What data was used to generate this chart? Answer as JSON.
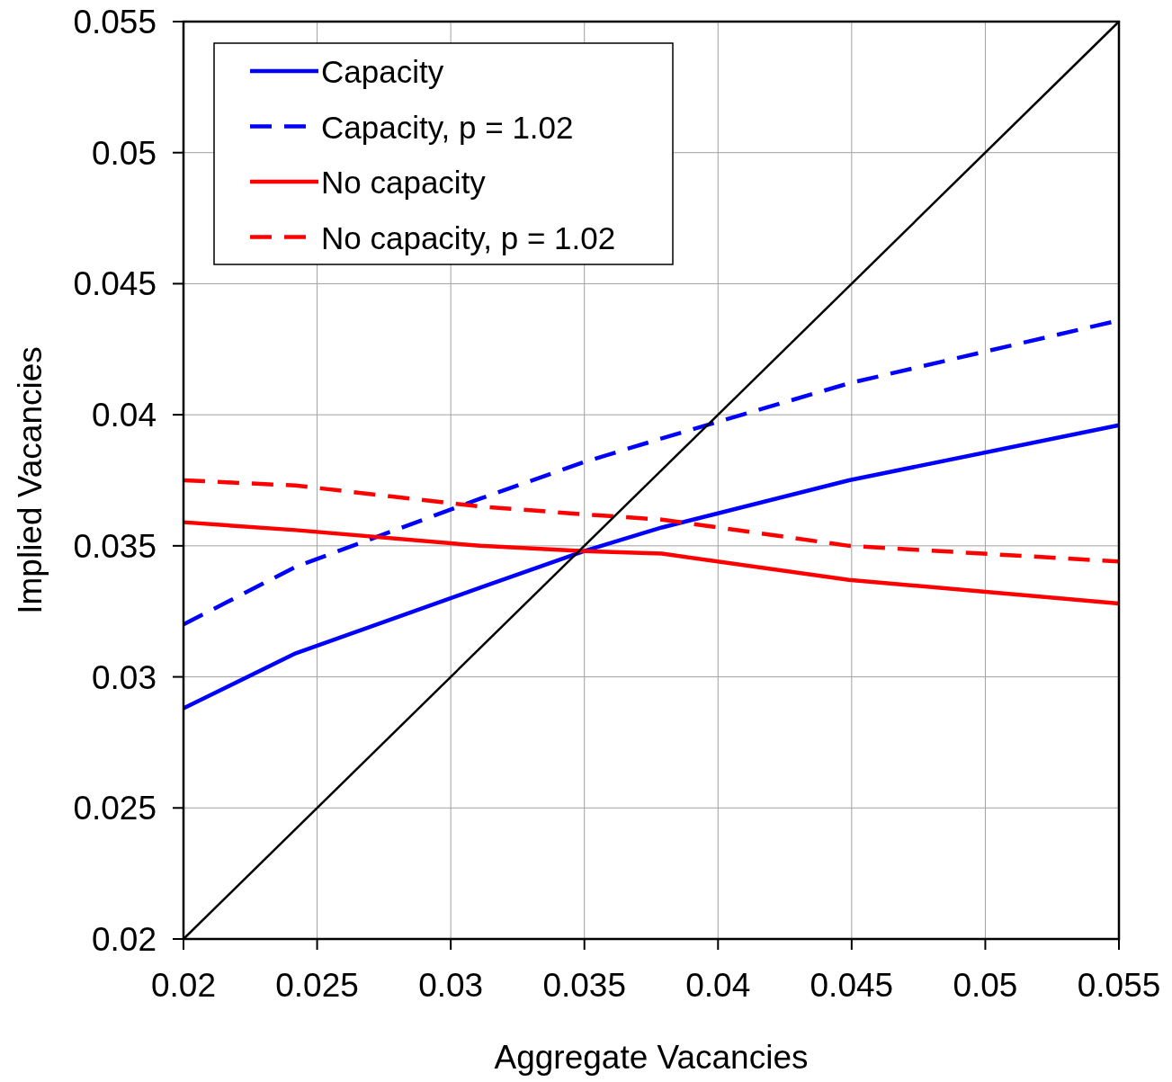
{
  "chart_data": {
    "type": "line",
    "xlabel": "Aggregate Vacancies",
    "ylabel": "Implied Vacancies",
    "xlim": [
      0.02,
      0.055
    ],
    "ylim": [
      0.02,
      0.055
    ],
    "xticks": [
      0.02,
      0.025,
      0.03,
      0.035,
      0.04,
      0.045,
      0.05,
      0.055
    ],
    "yticks": [
      0.02,
      0.025,
      0.03,
      0.035,
      0.04,
      0.045,
      0.05,
      0.055
    ],
    "grid": true,
    "legend": "top left",
    "x": [
      0.02,
      0.0242,
      0.0311,
      0.035,
      0.0379,
      0.0449,
      0.055
    ],
    "series": [
      {
        "name": "Capacity",
        "color": "#0000ff",
        "line_style": "solid",
        "values": [
          0.0288,
          0.0309,
          0.0334,
          0.0348,
          0.0357,
          0.0375,
          0.0396
        ]
      },
      {
        "name": "Capacity, p = 1.02",
        "color": "#0000ff",
        "line_style": "dashed",
        "values": [
          0.032,
          0.0342,
          0.0368,
          0.0382,
          0.0391,
          0.0412,
          0.0436
        ]
      },
      {
        "name": "No capacity",
        "color": "#ff0000",
        "line_style": "solid",
        "values": [
          0.0359,
          0.0356,
          0.035,
          0.0348,
          0.0347,
          0.0337,
          0.0328
        ]
      },
      {
        "name": "No capacity, p = 1.02",
        "color": "#ff0000",
        "line_style": "dashed",
        "values": [
          0.0375,
          0.0373,
          0.0365,
          0.0362,
          0.036,
          0.035,
          0.0344
        ]
      },
      {
        "color": "#000000",
        "line_style": "solid",
        "x": [
          0.02,
          0.055
        ],
        "values": [
          0.02,
          0.055
        ]
      }
    ]
  }
}
